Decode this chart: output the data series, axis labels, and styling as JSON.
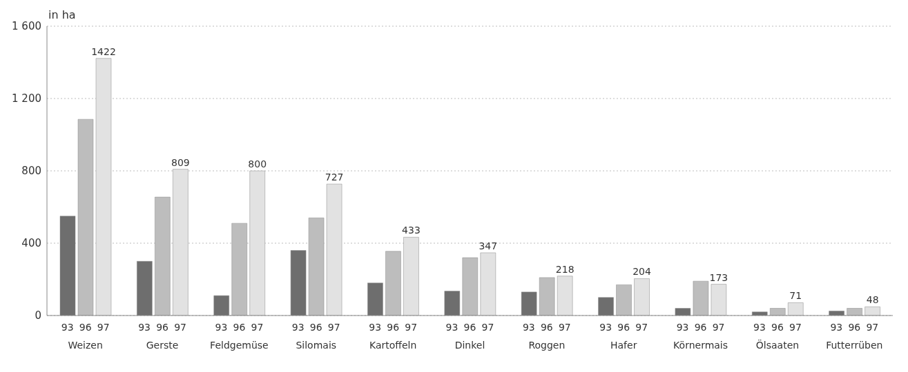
{
  "chart_data": {
    "type": "bar",
    "ylabel": "in ha",
    "categories": [
      "Weizen",
      "Gerste",
      "Feldgemüse",
      "Silomais",
      "Kartoffeln",
      "Dinkel",
      "Roggen",
      "Hafer",
      "Körnermais",
      "Ölsaaten",
      "Futterrüben"
    ],
    "series": [
      {
        "name": "93",
        "color": "#6e6e6e",
        "values": [
          550,
          300,
          110,
          360,
          180,
          135,
          130,
          100,
          40,
          20,
          25
        ]
      },
      {
        "name": "96",
        "color": "#bdbdbd",
        "values": [
          1085,
          655,
          510,
          540,
          355,
          320,
          210,
          170,
          190,
          40,
          40
        ]
      },
      {
        "name": "97",
        "color": "#e2e2e2",
        "values": [
          1422,
          809,
          800,
          727,
          433,
          347,
          218,
          204,
          173,
          71,
          48
        ],
        "value_labels": [
          "1422",
          "809",
          "800",
          "727",
          "433",
          "347",
          "218",
          "204",
          "173",
          "71",
          "48"
        ]
      }
    ],
    "ylim": [
      0,
      1600
    ],
    "yticks": [
      0,
      {
        "value": 400,
        "label": "400"
      },
      {
        "value": 800,
        "label": "800"
      },
      {
        "value": 1200,
        "label": "1 200"
      },
      {
        "value": 1600,
        "label": "1 600"
      }
    ],
    "grid": "y"
  }
}
